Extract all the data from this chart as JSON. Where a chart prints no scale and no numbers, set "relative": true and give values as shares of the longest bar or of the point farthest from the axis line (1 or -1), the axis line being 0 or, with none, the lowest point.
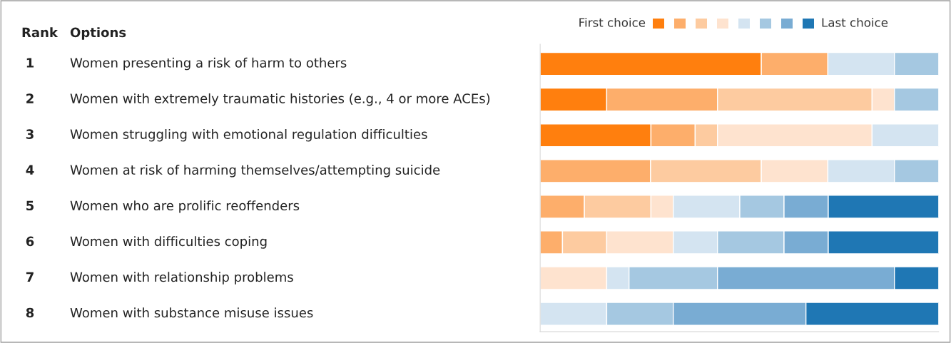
{
  "chart_data": {
    "type": "bar",
    "orientation": "horizontal",
    "stacked": true,
    "relative": true,
    "legend": "top right",
    "categories": [
      "Women presenting a risk of harm to others",
      "Women with extremely traumatic histories (e.g., 4 or more ACEs)",
      "Women struggling with emotional regulation difficulties",
      "Women at risk of harming themselves/attempting suicide",
      "Women who are prolific reoffenders",
      "Women with difficulties coping",
      "Women with relationship problems",
      "Women with substance misuse issues"
    ],
    "series": [
      {
        "name": "First choice",
        "color": "#ff7f0e",
        "values": [
          0.555,
          0.167,
          0.278,
          null,
          null,
          null,
          null,
          null
        ]
      },
      {
        "color": "#fdae6b",
        "values": [
          0.167,
          0.278,
          0.111,
          0.277,
          0.111,
          0.056,
          null,
          null
        ]
      },
      {
        "color": "#fdcba0",
        "values": [
          null,
          0.388,
          0.056,
          0.278,
          0.167,
          0.111,
          null,
          null
        ]
      },
      {
        "color": "#fee3cf",
        "values": [
          null,
          0.056,
          0.388,
          0.167,
          0.056,
          0.167,
          0.167,
          null
        ]
      },
      {
        "color": "#d4e4f1",
        "values": [
          0.167,
          null,
          0.167,
          0.167,
          0.167,
          0.111,
          0.056,
          0.167
        ]
      },
      {
        "color": "#a5c8e1",
        "values": [
          0.111,
          0.111,
          null,
          0.111,
          0.111,
          0.167,
          0.222,
          0.167
        ]
      },
      {
        "color": "#79acd3",
        "values": [
          null,
          null,
          null,
          null,
          0.111,
          0.111,
          0.444,
          0.333
        ]
      },
      {
        "name": "Last choice",
        "color": "#1f77b4",
        "values": [
          null,
          null,
          null,
          null,
          0.277,
          0.277,
          0.111,
          0.333
        ]
      }
    ],
    "annotations": [
      "Rank",
      "Options",
      "1",
      "2",
      "3",
      "4",
      "5",
      "6",
      "7",
      "8"
    ]
  }
}
